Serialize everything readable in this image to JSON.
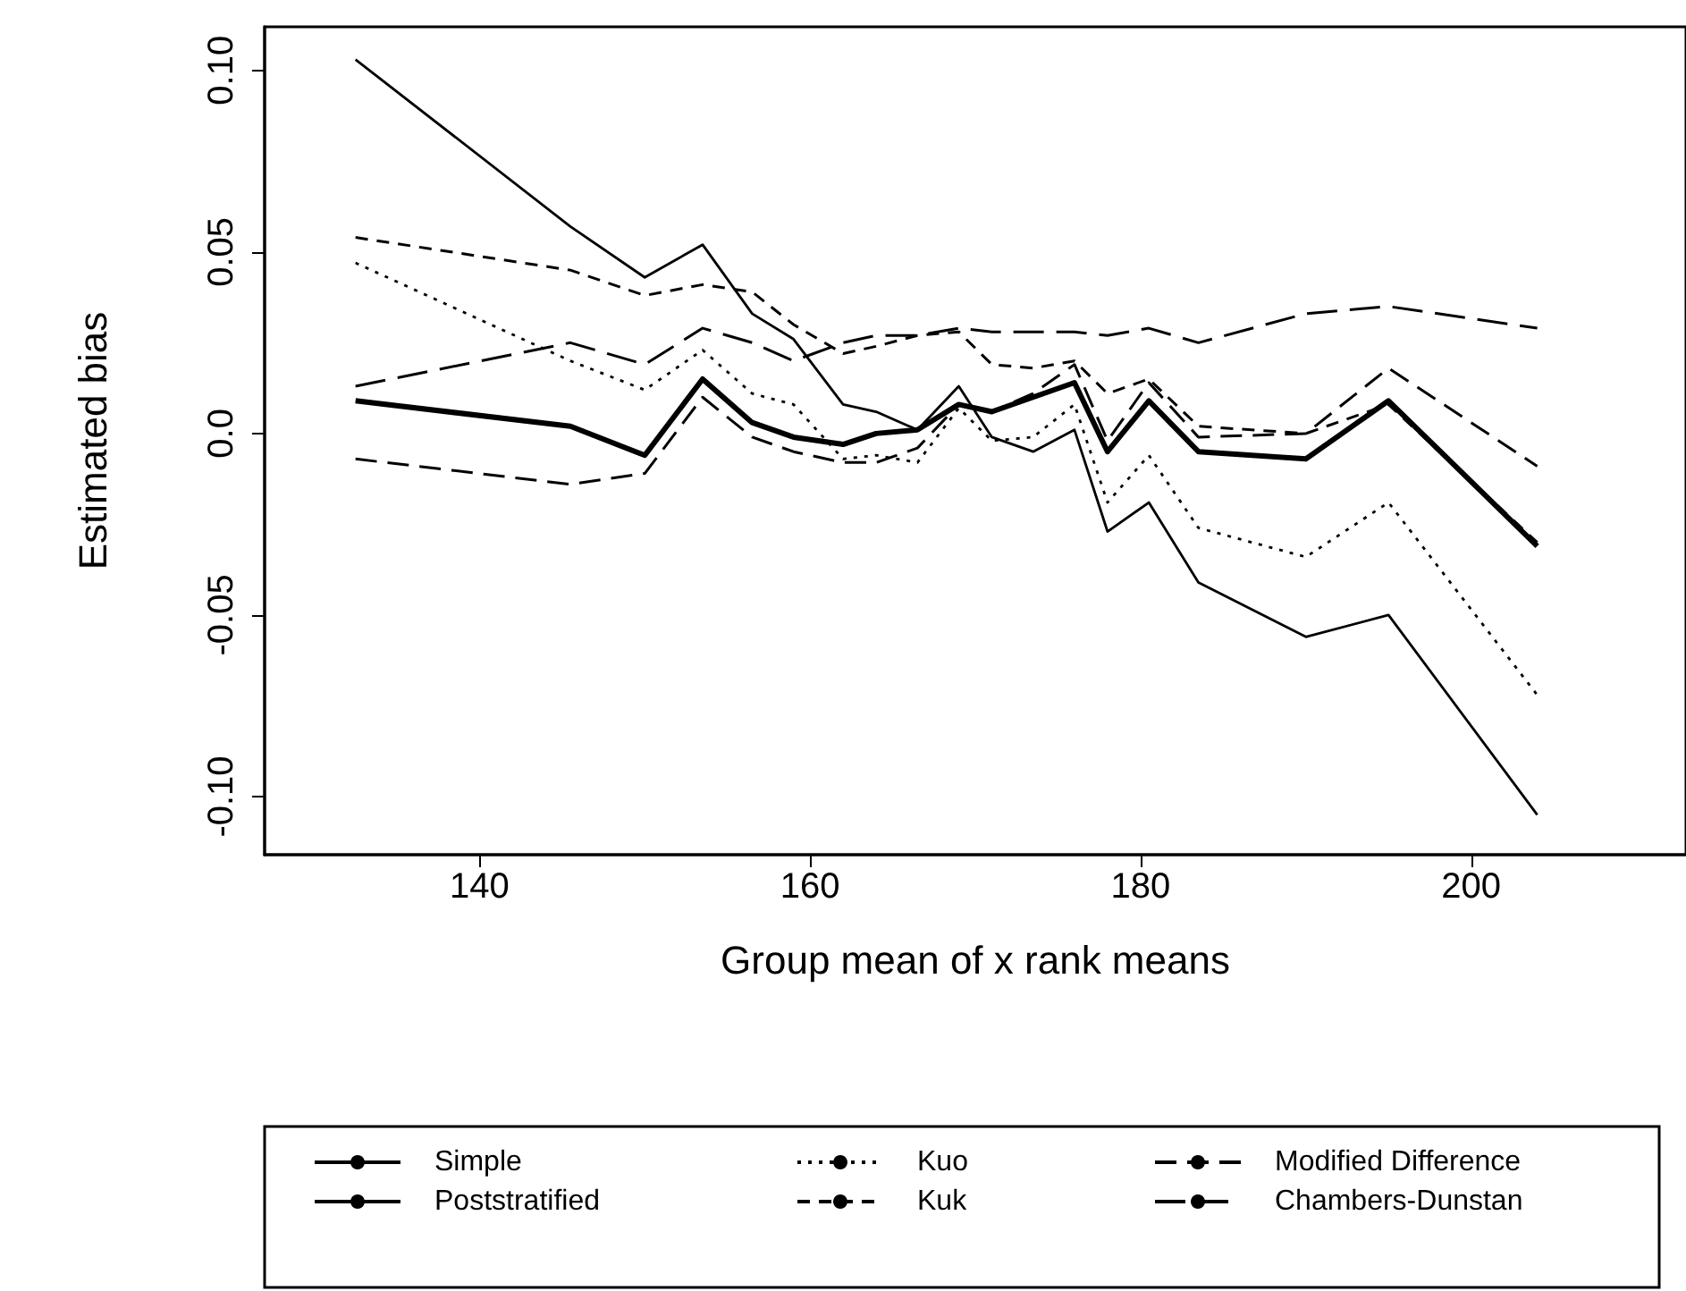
{
  "chart_data": {
    "type": "line",
    "xlabel": "Group mean of x rank means",
    "ylabel": "Estimated bias",
    "x": [
      132.5,
      145.5,
      150,
      153.5,
      156.5,
      159,
      162,
      164,
      166.5,
      169,
      171,
      173.5,
      176,
      178,
      180.5,
      183.5,
      190,
      195,
      204
    ],
    "series": [
      {
        "name": "Simple",
        "color": "#000000",
        "line_style": "solid",
        "values": [
          0.103,
          0.057,
          0.043,
          0.052,
          0.033,
          0.026,
          0.008,
          0.006,
          0.001,
          0.013,
          -0.001,
          -0.005,
          0.001,
          -0.027,
          -0.019,
          -0.041,
          -0.056,
          -0.05,
          -0.105
        ]
      },
      {
        "name": "Poststratified",
        "color": "#000000",
        "line_style": "solid",
        "values": [
          0.009,
          0.002,
          -0.006,
          0.015,
          0.003,
          -0.001,
          -0.003,
          0.0,
          0.001,
          0.008,
          0.006,
          0.01,
          0.014,
          -0.005,
          0.009,
          -0.005,
          -0.007,
          0.009,
          -0.031
        ]
      },
      {
        "name": "Kuo",
        "color": "#000000",
        "line_style": "dotted",
        "values": [
          0.047,
          0.02,
          0.012,
          0.023,
          0.011,
          0.008,
          -0.007,
          -0.006,
          -0.008,
          0.007,
          -0.002,
          -0.001,
          0.008,
          -0.019,
          -0.006,
          -0.026,
          -0.034,
          -0.019,
          -0.072
        ]
      },
      {
        "name": "Kuk",
        "color": "#000000",
        "line_style": "dashed",
        "values": [
          0.054,
          0.045,
          0.038,
          0.041,
          0.039,
          0.03,
          0.022,
          0.024,
          0.027,
          0.028,
          0.019,
          0.018,
          0.02,
          0.011,
          0.015,
          0.002,
          0.0,
          0.008,
          -0.03
        ]
      },
      {
        "name": "Modified Difference",
        "color": "#000000",
        "line_style": "dashed",
        "values": [
          -0.007,
          -0.014,
          -0.011,
          0.01,
          -0.001,
          -0.005,
          -0.008,
          -0.008,
          -0.004,
          0.008,
          0.006,
          0.011,
          0.019,
          -0.002,
          0.014,
          -0.001,
          0.0,
          0.018,
          -0.009
        ]
      },
      {
        "name": "Chambers-Dunstan",
        "color": "#000000",
        "line_style": "dashed",
        "values": [
          0.013,
          0.025,
          0.019,
          0.029,
          0.025,
          0.02,
          0.025,
          0.027,
          0.027,
          0.029,
          0.028,
          0.028,
          0.028,
          0.027,
          0.029,
          0.025,
          0.033,
          0.035,
          0.029
        ]
      }
    ],
    "xlim": [
      127,
      213
    ],
    "xticks": [
      140,
      160,
      180,
      200
    ],
    "ylim": [
      -0.116,
      0.112
    ],
    "yticks": [
      {
        "value": -0.1,
        "label": "-0.10"
      },
      {
        "value": -0.05,
        "label": "-0.05"
      },
      {
        "value": 0,
        "label": "0.0"
      },
      {
        "value": 0.05,
        "label": "0.05"
      },
      {
        "value": 0.1,
        "label": "0.10"
      }
    ],
    "grid": false,
    "legend": "bottom",
    "marker": "none"
  }
}
